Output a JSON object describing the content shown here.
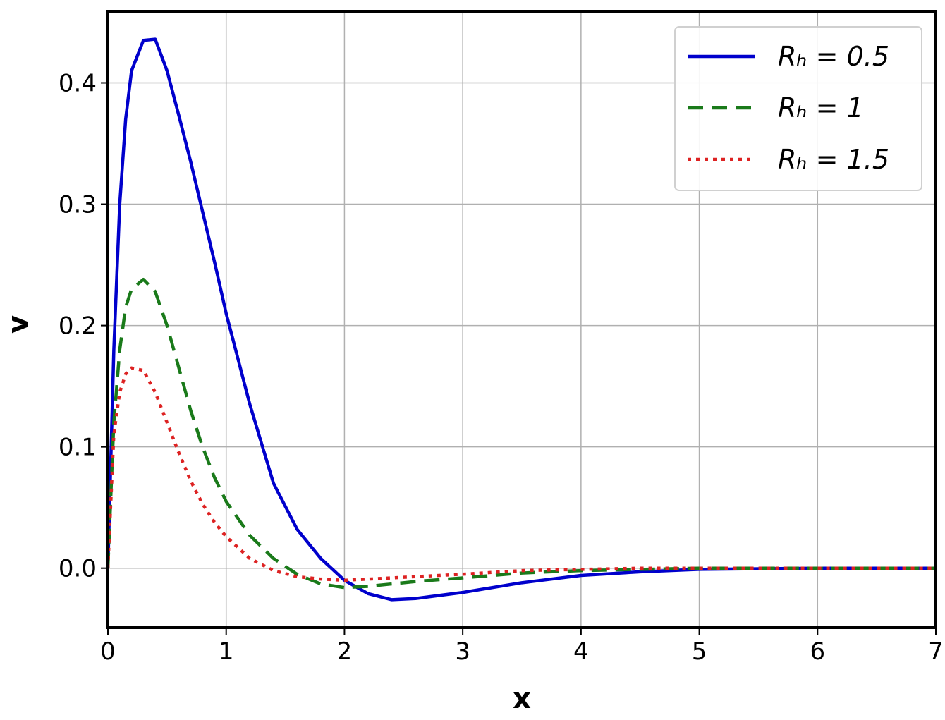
{
  "chart_data": {
    "type": "line",
    "x_label": "x",
    "y_label": "v",
    "x": [
      0,
      0.05,
      0.1,
      0.15,
      0.2,
      0.3,
      0.4,
      0.5,
      0.6,
      0.7,
      0.8,
      0.9,
      1.0,
      1.2,
      1.4,
      1.6,
      1.8,
      2.0,
      2.2,
      2.4,
      2.6,
      3.0,
      3.5,
      4.0,
      4.5,
      5.0,
      6.0,
      7.0
    ],
    "series": [
      {
        "name": "Rₕ = 0.5",
        "color": "#0000cc",
        "dash": "solid",
        "values": [
          0,
          0.18,
          0.3,
          0.37,
          0.41,
          0.435,
          0.436,
          0.41,
          0.373,
          0.335,
          0.294,
          0.253,
          0.21,
          0.135,
          0.07,
          0.032,
          0.008,
          -0.01,
          -0.021,
          -0.026,
          -0.025,
          -0.02,
          -0.012,
          -0.006,
          -0.003,
          -0.001,
          0,
          0
        ]
      },
      {
        "name": "Rₕ = 1",
        "color": "#1a7a1a",
        "dash": "dashed",
        "values": [
          0,
          0.12,
          0.18,
          0.215,
          0.23,
          0.238,
          0.228,
          0.2,
          0.165,
          0.13,
          0.1,
          0.075,
          0.055,
          0.027,
          0.008,
          -0.005,
          -0.013,
          -0.016,
          -0.015,
          -0.013,
          -0.011,
          -0.008,
          -0.004,
          -0.002,
          -0.001,
          0,
          0,
          0
        ]
      },
      {
        "name": "Rₕ = 1.5",
        "color": "#dd2222",
        "dash": "dotted",
        "values": [
          0,
          0.11,
          0.145,
          0.16,
          0.165,
          0.163,
          0.145,
          0.12,
          0.095,
          0.072,
          0.053,
          0.038,
          0.026,
          0.008,
          -0.002,
          -0.007,
          -0.009,
          -0.01,
          -0.009,
          -0.008,
          -0.007,
          -0.005,
          -0.002,
          -0.001,
          0,
          0,
          0,
          0
        ]
      }
    ],
    "xlim": [
      0,
      7
    ],
    "xticks": [
      0,
      1,
      2,
      3,
      4,
      5,
      6,
      7
    ],
    "ylim": [
      -0.049,
      0.459
    ],
    "yticks": [
      {
        "value": 0,
        "label": "0.0"
      },
      0.1,
      0.2,
      0.3,
      0.4
    ],
    "grid": true,
    "legend": "upper right"
  }
}
